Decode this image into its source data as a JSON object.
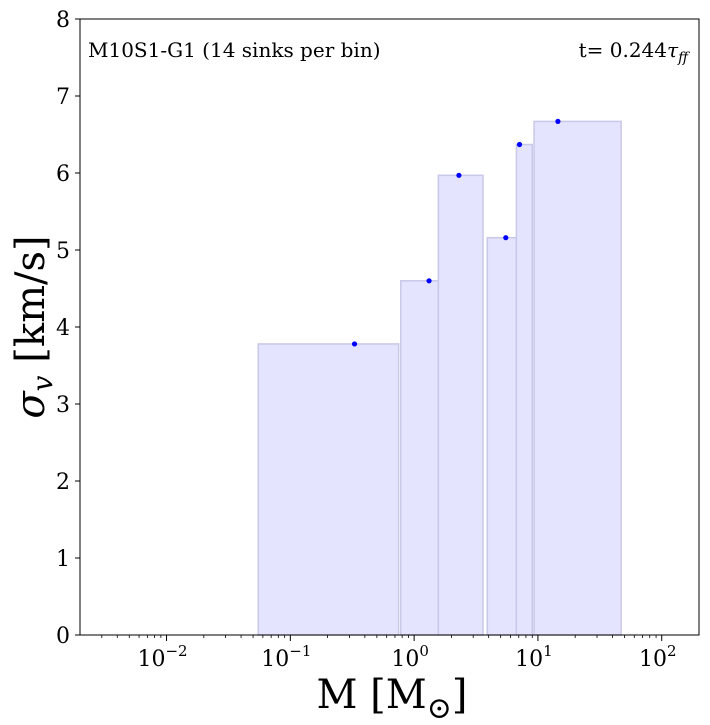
{
  "chart_data": {
    "type": "bar",
    "title": "",
    "annotation_left": "M10S1-G1 (14 sinks per bin)",
    "annotation_right_prefix": "t= 0.244",
    "annotation_right_symbol": "τ",
    "annotation_right_subscript": "ff",
    "xlabel_main": "M [M",
    "xlabel_sub": "⊙",
    "xlabel_end": "]",
    "ylabel_symbol": "σ",
    "ylabel_subscript": "v",
    "ylabel_unit": " [km/s]",
    "xscale": "log",
    "xlim": [
      0.002,
      200
    ],
    "ylim": [
      0,
      8
    ],
    "x_ticks": [
      {
        "value": 0.01,
        "base": "10",
        "exp": "−2"
      },
      {
        "value": 0.1,
        "base": "10",
        "exp": "−1"
      },
      {
        "value": 1,
        "base": "10",
        "exp": "0"
      },
      {
        "value": 10,
        "base": "10",
        "exp": "1"
      },
      {
        "value": 100,
        "base": "10",
        "exp": "2"
      }
    ],
    "y_ticks": [
      0,
      1,
      2,
      3,
      4,
      5,
      6,
      7,
      8
    ],
    "bar_color": "#e4e4ff",
    "bar_edge_color": "#c8c8e8",
    "point_color": "#0000ff",
    "bins": [
      {
        "x_min": 0.055,
        "x_max": 0.75,
        "value": 3.78,
        "point_x": 0.33
      },
      {
        "x_min": 0.78,
        "x_max": 1.57,
        "value": 4.6,
        "point_x": 1.32
      },
      {
        "x_min": 1.57,
        "x_max": 3.6,
        "value": 5.97,
        "point_x": 2.3
      },
      {
        "x_min": 3.9,
        "x_max": 6.7,
        "value": 5.16,
        "point_x": 5.5
      },
      {
        "x_min": 6.7,
        "x_max": 9.0,
        "value": 6.37,
        "point_x": 7.1
      },
      {
        "x_min": 9.3,
        "x_max": 47,
        "value": 6.67,
        "point_x": 14.5
      }
    ]
  }
}
